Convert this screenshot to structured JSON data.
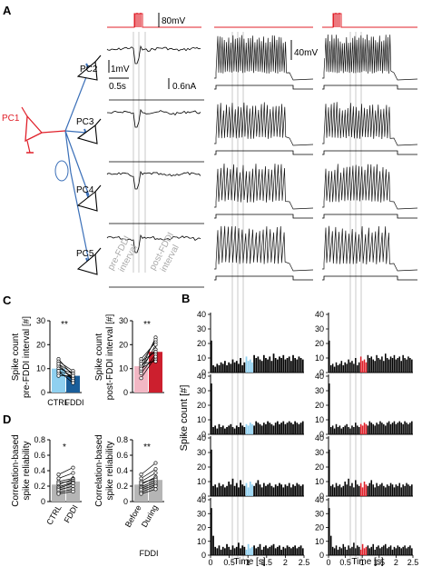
{
  "panels": {
    "A": "A",
    "B": "B",
    "C": "C",
    "D": "D"
  },
  "colors": {
    "red": "#e0202a",
    "blue": "#3a6fb8",
    "lightblue": "#8fd0f0",
    "darkblue": "#1a5e9a",
    "pink": "#f2b7c4",
    "darkred": "#cc1f2e",
    "gray": "#b5b5b5"
  },
  "panelA": {
    "cells": {
      "pc1": "PC1",
      "pc2": "PC2",
      "pc3": "PC3",
      "pc4": "PC4",
      "pc5": "PC5"
    },
    "scale": {
      "mv80": "80mV",
      "mv1": "1mV",
      "s05": "0.5s",
      "na06": "0.6nA",
      "mv40": "40mV"
    },
    "interval": {
      "pre1": "pre-FDDI",
      "pre2": "interval",
      "post1": "post-FDDI",
      "post2": "interval"
    }
  },
  "panelB": {
    "ylabel": "Spike count [#]",
    "xlabel": "Time [s]",
    "yticks": [
      "0",
      "10",
      "20",
      "30",
      "40"
    ],
    "xticks": [
      "0",
      "0.5",
      "1",
      "1.5",
      "2",
      "2.5"
    ]
  },
  "panelC": {
    "significance": "**",
    "left_ylabel1": "Spike count",
    "left_ylabel2": "pre-FDDI interval [#]",
    "right_ylabel1": "Spike count",
    "right_ylabel2": "post-FDDI interval [#]",
    "left_yticks": [
      "0",
      "10",
      "20",
      "30"
    ],
    "right_yticks": [
      "0",
      "10",
      "20",
      "30"
    ],
    "xcat_ctrl": "CTRL",
    "xcat_fddi": "FDDI"
  },
  "panelD": {
    "sig_left": "*",
    "sig_right": "**",
    "ylabel1": "Correlation-based",
    "ylabel2": "spike reliability",
    "yticks": [
      "0",
      "0.2",
      "0.4",
      "0.6",
      "0.8"
    ],
    "left_x1": "CTRL",
    "left_x2": "FDDI",
    "right_x1": "Before",
    "right_x2": "During",
    "right_xsub": "FDDI"
  },
  "chart_data": [
    {
      "type": "bar",
      "title": "",
      "xlabel": "",
      "ylabel": "Spike count pre-FDDI interval [#]",
      "ylim": [
        0,
        30
      ],
      "categories": [
        "CTRL",
        "FDDI"
      ],
      "values": [
        10,
        7
      ],
      "paired_points": [
        [
          14,
          7
        ],
        [
          13,
          9
        ],
        [
          12,
          8
        ],
        [
          11,
          6
        ],
        [
          10,
          8
        ],
        [
          9,
          7
        ],
        [
          8,
          6
        ],
        [
          12,
          5
        ],
        [
          7,
          7
        ],
        [
          9,
          4
        ]
      ],
      "significance": "**"
    },
    {
      "type": "bar",
      "title": "",
      "xlabel": "",
      "ylabel": "Spike count post-FDDI interval [#]",
      "ylim": [
        0,
        30
      ],
      "categories": [
        "CTRL",
        "FDDI"
      ],
      "values": [
        11,
        17
      ],
      "paired_points": [
        [
          10,
          23
        ],
        [
          12,
          22
        ],
        [
          14,
          21
        ],
        [
          9,
          20
        ],
        [
          11,
          18
        ],
        [
          13,
          17
        ],
        [
          8,
          16
        ],
        [
          10,
          14
        ],
        [
          6,
          15
        ],
        [
          12,
          13
        ]
      ],
      "significance": "**"
    },
    {
      "type": "bar",
      "title": "",
      "xlabel": "",
      "ylabel": "Correlation-based spike reliability",
      "ylim": [
        0,
        0.8
      ],
      "categories": [
        "CTRL",
        "FDDI"
      ],
      "values": [
        0.22,
        0.26
      ],
      "paired_points": [
        [
          0.35,
          0.44
        ],
        [
          0.3,
          0.37
        ],
        [
          0.26,
          0.3
        ],
        [
          0.22,
          0.29
        ],
        [
          0.24,
          0.27
        ],
        [
          0.19,
          0.25
        ],
        [
          0.17,
          0.24
        ],
        [
          0.15,
          0.2
        ],
        [
          0.12,
          0.16
        ],
        [
          0.1,
          0.13
        ]
      ],
      "significance": "*"
    },
    {
      "type": "bar",
      "title": "",
      "xlabel": "FDDI",
      "ylabel": "Correlation-based spike reliability",
      "ylim": [
        0,
        0.8
      ],
      "categories": [
        "Before",
        "During"
      ],
      "values": [
        0.22,
        0.28
      ],
      "paired_points": [
        [
          0.35,
          0.5
        ],
        [
          0.3,
          0.42
        ],
        [
          0.26,
          0.37
        ],
        [
          0.22,
          0.32
        ],
        [
          0.24,
          0.3
        ],
        [
          0.19,
          0.28
        ],
        [
          0.17,
          0.25
        ],
        [
          0.15,
          0.22
        ],
        [
          0.12,
          0.2
        ],
        [
          0.1,
          0.16
        ]
      ],
      "significance": "**"
    },
    {
      "type": "bar",
      "title": "",
      "xlabel": "Time [s]",
      "ylabel": "Spike count [#]",
      "xlim": [
        0,
        2.5
      ],
      "ylim": [
        0,
        40
      ],
      "grid": false,
      "series": [
        {
          "column": 1,
          "row": 1,
          "values": [
            22,
            5,
            4,
            6,
            5,
            7,
            6,
            8,
            5,
            7,
            6,
            9,
            7,
            8,
            6,
            10,
            5,
            7,
            11,
            8,
            9,
            7,
            12,
            10,
            11,
            9,
            8,
            12,
            10,
            9,
            11,
            8,
            13,
            10,
            9,
            11,
            10,
            12,
            9,
            10,
            11,
            8,
            12,
            10,
            9,
            11,
            10,
            9
          ],
          "highlight": "blue"
        },
        {
          "column": 1,
          "row": 2,
          "values": [
            35,
            5,
            6,
            4,
            7,
            5,
            6,
            4,
            5,
            6,
            7,
            5,
            4,
            6,
            5,
            8,
            6,
            5,
            7,
            6,
            8,
            7,
            6,
            9,
            8,
            7,
            6,
            8,
            7,
            9,
            8,
            7,
            6,
            8,
            9,
            7,
            8,
            9,
            7,
            8,
            9,
            8,
            7,
            9,
            8,
            7,
            8,
            9
          ],
          "highlight": "blue"
        },
        {
          "column": 1,
          "row": 3,
          "values": [
            32,
            7,
            8,
            6,
            9,
            7,
            8,
            6,
            7,
            10,
            8,
            12,
            7,
            9,
            6,
            11,
            8,
            7,
            9,
            6,
            10,
            8,
            7,
            9,
            11,
            8,
            6,
            9,
            7,
            8,
            9,
            7,
            6,
            8,
            7,
            9,
            8,
            6,
            8,
            7,
            9,
            6,
            8,
            7,
            9,
            8,
            7,
            8
          ],
          "highlight": "blue"
        },
        {
          "column": 1,
          "row": 4,
          "values": [
            34,
            14,
            6,
            5,
            7,
            4,
            6,
            5,
            8,
            6,
            4,
            7,
            5,
            6,
            9,
            5,
            7,
            6,
            4,
            8,
            5,
            6,
            7,
            5,
            6,
            8,
            4,
            6,
            7,
            5,
            6,
            7,
            8,
            5,
            6,
            7,
            4,
            6,
            5,
            7,
            6,
            5,
            6,
            7,
            5,
            6,
            7,
            5
          ],
          "highlight": "blue"
        },
        {
          "column": 2,
          "row": 1,
          "values": [
            22,
            5,
            6,
            4,
            7,
            5,
            6,
            8,
            5,
            7,
            6,
            9,
            7,
            8,
            6,
            10,
            5,
            7,
            11,
            8,
            9,
            7,
            12,
            10,
            11,
            9,
            8,
            12,
            10,
            9,
            11,
            8,
            13,
            10,
            9,
            11,
            10,
            12,
            9,
            10,
            11,
            8,
            12,
            10,
            9,
            11,
            10,
            9
          ],
          "highlight": "red"
        },
        {
          "column": 2,
          "row": 2,
          "values": [
            35,
            5,
            6,
            4,
            7,
            5,
            6,
            4,
            5,
            6,
            7,
            5,
            4,
            6,
            5,
            8,
            6,
            5,
            7,
            6,
            8,
            7,
            6,
            9,
            8,
            7,
            6,
            8,
            7,
            9,
            8,
            7,
            6,
            8,
            9,
            7,
            8,
            9,
            7,
            8,
            9,
            8,
            7,
            9,
            8,
            7,
            8,
            9
          ],
          "highlight": "red"
        },
        {
          "column": 2,
          "row": 3,
          "values": [
            32,
            7,
            8,
            6,
            9,
            7,
            8,
            6,
            7,
            10,
            8,
            12,
            7,
            9,
            6,
            11,
            8,
            7,
            9,
            6,
            10,
            8,
            7,
            9,
            11,
            8,
            6,
            9,
            7,
            8,
            9,
            7,
            6,
            8,
            7,
            9,
            8,
            6,
            8,
            7,
            9,
            6,
            8,
            7,
            9,
            8,
            7,
            8
          ],
          "highlight": "red"
        },
        {
          "column": 2,
          "row": 4,
          "values": [
            34,
            14,
            6,
            5,
            7,
            4,
            6,
            5,
            8,
            6,
            4,
            7,
            5,
            6,
            9,
            5,
            7,
            6,
            4,
            8,
            5,
            6,
            7,
            5,
            6,
            8,
            4,
            6,
            7,
            5,
            6,
            7,
            8,
            5,
            6,
            7,
            4,
            6,
            5,
            7,
            6,
            5,
            6,
            7,
            5,
            6,
            7,
            5
          ],
          "highlight": "red"
        }
      ]
    }
  ]
}
